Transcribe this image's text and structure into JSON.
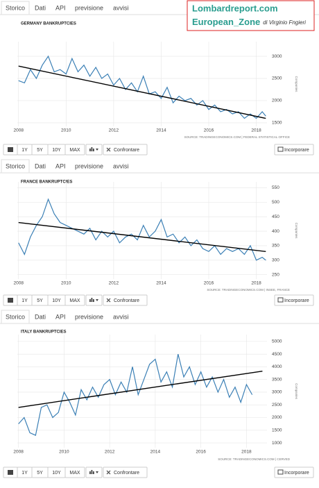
{
  "tabs": [
    "Storico",
    "Dati",
    "API",
    "previsione",
    "avvisi"
  ],
  "buttons": [
    "1Y",
    "5Y",
    "10Y",
    "MAX",
    "Confrontare",
    "Incorporare"
  ],
  "banner": {
    "site": "Lombardreport.com",
    "zone": "European_Zone",
    "author": "di Virginio Fngieri"
  },
  "chart_data": [
    {
      "type": "line",
      "title": "GERMANY BANKRUPTCIES",
      "y_label": "Companies",
      "source": "SOURCE: TRADINGECONOMICS.COM | FEDERAL STATISTICAL OFFICE",
      "xlim": [
        2007.95,
        2018.45
      ],
      "xticks": [
        2008,
        2010,
        2012,
        2014,
        2016,
        2018
      ],
      "ylim": [
        1420,
        3330
      ],
      "yticks": [
        1500,
        2000,
        2500,
        3000
      ],
      "grid": true,
      "series": [
        {
          "color": "#3a7fb5",
          "x": [
            2008,
            2008.25,
            2008.5,
            2008.75,
            2009,
            2009.25,
            2009.5,
            2009.75,
            2010,
            2010.25,
            2010.5,
            2010.75,
            2011,
            2011.25,
            2011.5,
            2011.75,
            2012,
            2012.25,
            2012.5,
            2012.75,
            2013,
            2013.25,
            2013.5,
            2013.75,
            2014,
            2014.25,
            2014.5,
            2014.75,
            2015,
            2015.25,
            2015.5,
            2015.75,
            2016,
            2016.25,
            2016.5,
            2016.75,
            2017,
            2017.25,
            2017.5,
            2017.75,
            2018,
            2018.25,
            2018.4
          ],
          "values": [
            2450,
            2400,
            2700,
            2500,
            2800,
            3000,
            2650,
            2700,
            2600,
            2950,
            2650,
            2800,
            2550,
            2750,
            2500,
            2600,
            2350,
            2500,
            2250,
            2400,
            2200,
            2550,
            2150,
            2200,
            2050,
            2300,
            1950,
            2100,
            2000,
            2050,
            1900,
            2000,
            1800,
            1900,
            1750,
            1800,
            1700,
            1750,
            1600,
            1700,
            1600,
            1750,
            1650
          ]
        },
        {
          "color": "#000000",
          "x": [
            2008,
            2018.4
          ],
          "values": [
            2780,
            1600
          ]
        }
      ]
    },
    {
      "type": "line",
      "title": "FRANCE BANKRUPTCIES",
      "y_label": "Companies",
      "source": "SOURCE: TRADINGECONOMICS.COM | INSEE, FRANCE",
      "xlim": [
        2007.95,
        2018.45
      ],
      "xticks": [
        2008,
        2010,
        2012,
        2014,
        2016,
        2018
      ],
      "ylim": [
        235,
        570
      ],
      "yticks": [
        250,
        300,
        350,
        400,
        450,
        500,
        550
      ],
      "grid": true,
      "series": [
        {
          "color": "#3a7fb5",
          "x": [
            2008,
            2008.25,
            2008.5,
            2008.75,
            2009,
            2009.25,
            2009.5,
            2009.75,
            2010,
            2010.25,
            2010.5,
            2010.75,
            2011,
            2011.25,
            2011.5,
            2011.75,
            2012,
            2012.25,
            2012.5,
            2012.75,
            2013,
            2013.25,
            2013.5,
            2013.75,
            2014,
            2014.25,
            2014.5,
            2014.75,
            2015,
            2015.25,
            2015.5,
            2015.75,
            2016,
            2016.25,
            2016.5,
            2016.75,
            2017,
            2017.25,
            2017.5,
            2017.75,
            2018,
            2018.25,
            2018.4
          ],
          "values": [
            360,
            320,
            380,
            420,
            450,
            510,
            460,
            430,
            420,
            410,
            400,
            390,
            410,
            370,
            400,
            380,
            400,
            360,
            380,
            390,
            370,
            420,
            380,
            400,
            440,
            380,
            390,
            360,
            380,
            350,
            370,
            340,
            330,
            350,
            320,
            340,
            330,
            340,
            320,
            350,
            300,
            310,
            300
          ]
        },
        {
          "color": "#000000",
          "x": [
            2008,
            2018.4
          ],
          "values": [
            430,
            330
          ]
        }
      ]
    },
    {
      "type": "line",
      "title": "ITALY BANKRUPTCIES",
      "y_label": "Companies",
      "source": "SOURCE: TRADINGECONOMICS.COM | CERVED",
      "xlim": [
        2007.95,
        2018.9
      ],
      "xticks": [
        2008,
        2010,
        2012,
        2014,
        2016,
        2018
      ],
      "ylim": [
        810,
        5270
      ],
      "yticks": [
        1000,
        1500,
        2000,
        2500,
        3000,
        3500,
        4000,
        4500,
        5000
      ],
      "grid": true,
      "series": [
        {
          "color": "#3a7fb5",
          "x": [
            2008,
            2008.25,
            2008.5,
            2008.75,
            2009,
            2009.25,
            2009.5,
            2009.75,
            2010,
            2010.25,
            2010.5,
            2010.75,
            2011,
            2011.25,
            2011.5,
            2011.75,
            2012,
            2012.25,
            2012.5,
            2012.75,
            2013,
            2013.25,
            2013.5,
            2013.75,
            2014,
            2014.25,
            2014.5,
            2014.75,
            2015,
            2015.25,
            2015.5,
            2015.75,
            2016,
            2016.25,
            2016.5,
            2016.75,
            2017,
            2017.25,
            2017.5,
            2017.75,
            2018,
            2018.25
          ],
          "values": [
            1750,
            2000,
            1400,
            1300,
            2400,
            2500,
            2000,
            2200,
            3000,
            2600,
            2100,
            3100,
            2700,
            3200,
            2800,
            3300,
            3500,
            2900,
            3400,
            3000,
            4000,
            2900,
            3500,
            4100,
            4300,
            3400,
            3800,
            3200,
            4500,
            3600,
            4000,
            3300,
            3800,
            3200,
            3600,
            3000,
            3500,
            2800,
            3200,
            2600,
            3300,
            2900
          ]
        },
        {
          "color": "#000000",
          "x": [
            2008,
            2018.7
          ],
          "values": [
            2400,
            3830
          ]
        }
      ]
    }
  ]
}
